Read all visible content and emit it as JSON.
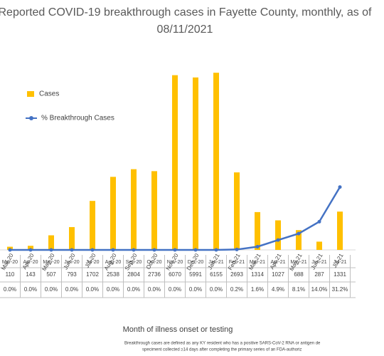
{
  "chart_data": {
    "type": "bar-line",
    "title": "Reported COVID-19 breakthrough cases in Fayette County, monthly, as of 08/11/2021",
    "x_label": "Month of illness onset or testing",
    "footnote": [
      "Breakthrough cases are defined as any KY resident who has a positive SARS-CoV-2 RNA or antigen de",
      "speciment collected ≥14 days after completing the primary series of an FDA-authoriz"
    ],
    "categories": [
      "Mar-20",
      "Apr-20",
      "May-20",
      "Jun-20",
      "Jul-20",
      "Aug-20",
      "Sep-20",
      "Oct-20",
      "Nov-20",
      "Dec-20",
      "Jan-21",
      "Feb-21",
      "Mar-21",
      "Apr-21",
      "May-21",
      "Jun-21",
      "Jul-21"
    ],
    "series": [
      {
        "name": "Cases",
        "color": "#ffc000",
        "values": [
          110,
          143,
          507,
          793,
          1702,
          2538,
          2804,
          2736,
          6070,
          5991,
          6155,
          2693,
          1314,
          1027,
          688,
          287,
          1331
        ]
      },
      {
        "name": "% Breakthrough Cases",
        "color": "#4472c4",
        "axis": "y2",
        "values": [
          0.0,
          0.0,
          0.0,
          0.0,
          0.0,
          0.0,
          0.0,
          0.0,
          0.0,
          0.0,
          0.0,
          0.2,
          1.6,
          4.9,
          8.1,
          14.0,
          31.2
        ],
        "value_labels": [
          "0.0%",
          "0.0%",
          "0.0%",
          "0.0%",
          "0.0%",
          "0.0%",
          "0.0%",
          "0.0%",
          "0.0%",
          "0.0%",
          "0.0%",
          "0.2%",
          "1.6%",
          "4.9%",
          "8.1%",
          "14.0%",
          "31.2%"
        ]
      }
    ],
    "ylim": [
      0,
      7000
    ],
    "y2lim": [
      0,
      100
    ]
  }
}
